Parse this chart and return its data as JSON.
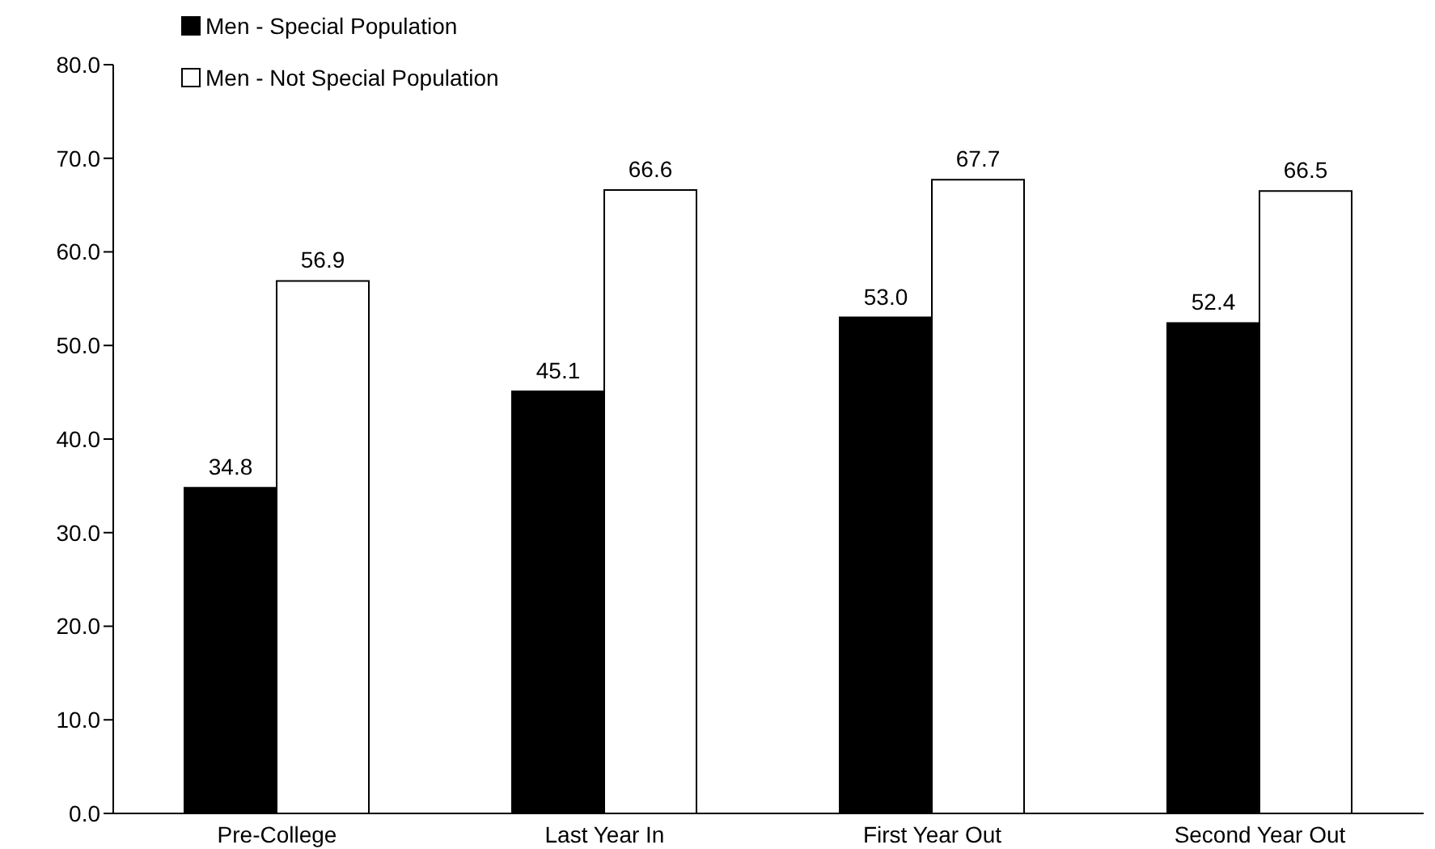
{
  "chart_data": {
    "type": "bar",
    "categories": [
      "Pre-College",
      "Last Year In",
      "First Year Out",
      "Second Year Out"
    ],
    "series": [
      {
        "name": "Men - Special Population",
        "color": "#000000",
        "values": [
          34.8,
          45.1,
          53.0,
          52.4
        ],
        "value_labels": [
          "34.8",
          "45.1",
          "53.0",
          "52.4"
        ]
      },
      {
        "name": "Men - Not Special Population",
        "color": "#ffffff",
        "values": [
          56.9,
          66.6,
          67.7,
          66.5
        ],
        "value_labels": [
          "56.9",
          "66.6",
          "67.7",
          "66.5"
        ]
      }
    ],
    "ylim": [
      0,
      80
    ],
    "yticks": [
      {
        "value": 0,
        "label": "0.0"
      },
      {
        "value": 10,
        "label": "10.0"
      },
      {
        "value": 20,
        "label": "20.0"
      },
      {
        "value": 30,
        "label": "30.0"
      },
      {
        "value": 40,
        "label": "40.0"
      },
      {
        "value": 50,
        "label": "50.0"
      },
      {
        "value": 60,
        "label": "60.0"
      },
      {
        "value": 70,
        "label": "70.0"
      },
      {
        "value": 80,
        "label": "80.0"
      }
    ],
    "grid": false,
    "legend": "top left"
  }
}
